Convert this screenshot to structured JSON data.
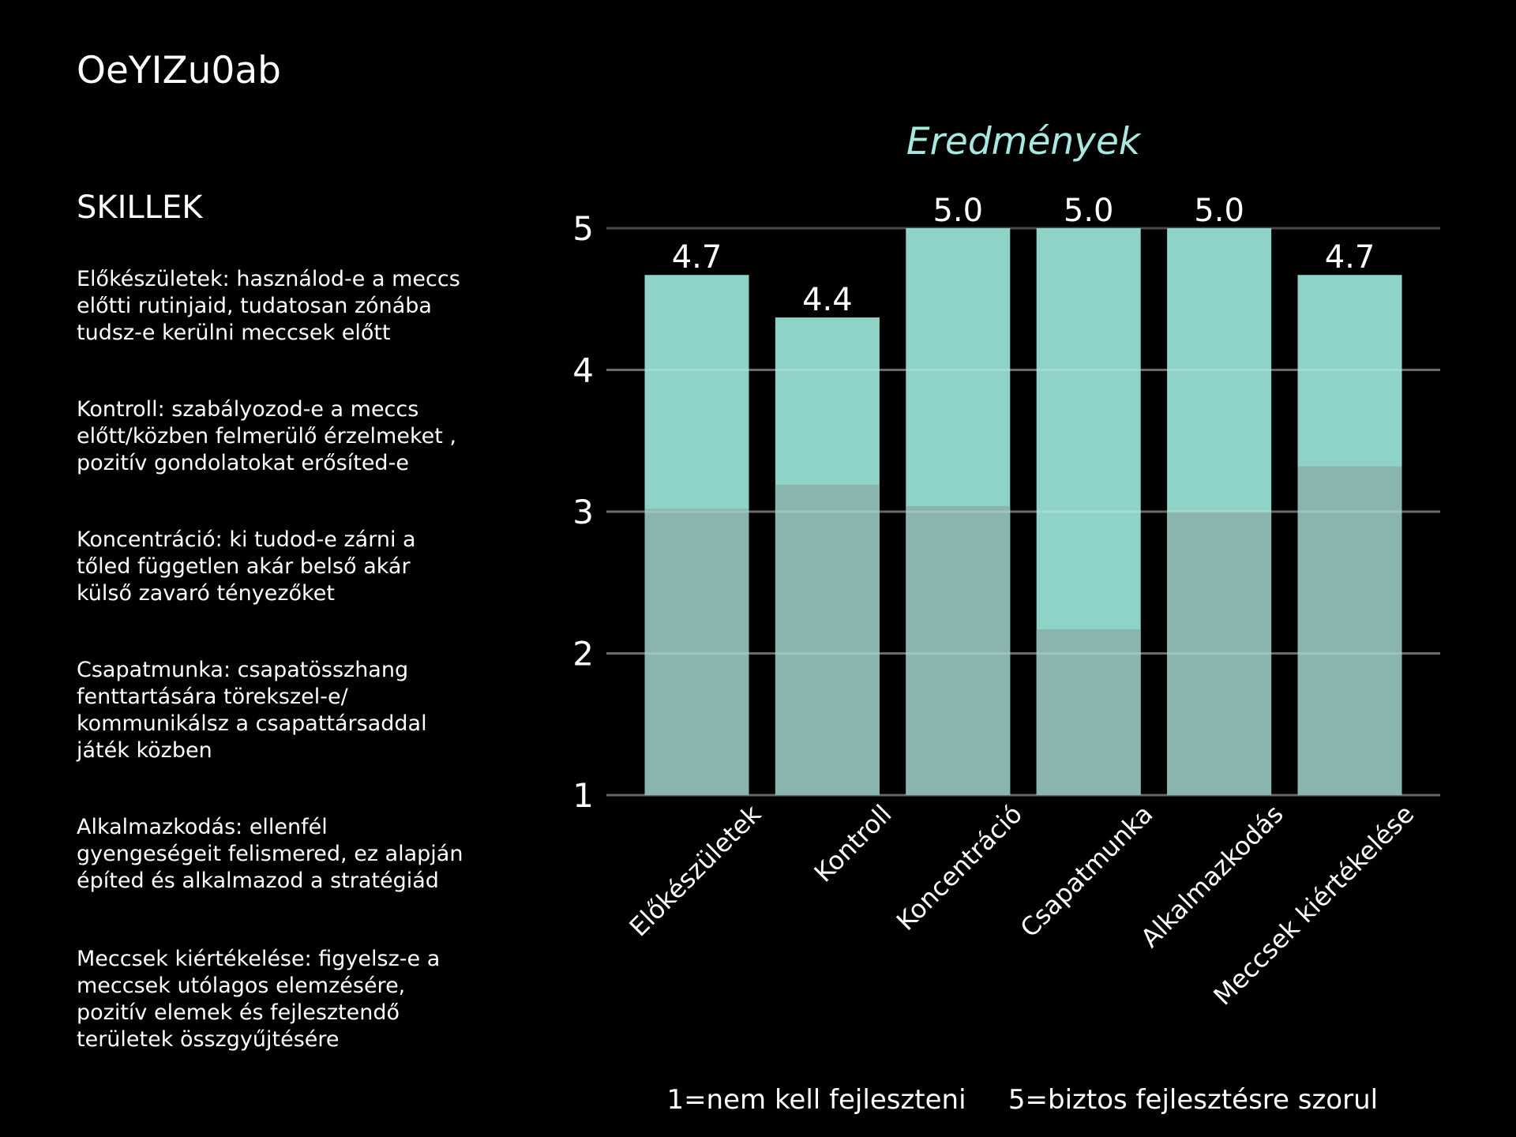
{
  "code": "OeYIZu0ab",
  "skills_heading": "SKILLEK",
  "descriptions": [
    "Előkészületek: használod-e a  meccs\nelőtti rutinjaid, tudatosan zónába\ntudsz-e kerülni  meccsek előtt",
    "Kontroll: szabályozod-e a meccs\nelőtt/közben felmerülő érzelmeket ,\npozitív gondolatokat erősíted-e",
    "Koncentráció: ki tudod-e zárni a\ntőled független akár belső akár\nkülső zavaró tényezőket",
    "Csapatmunka: csapatösszhang\nfenttartására törekszel-e/\nkommunikálsz a csapattársaddal\njáték közben",
    "Alkalmazkodás: ellenfél\ngyengeségeit felismered, ez alapján\népíted és alkalmazod a stratégiád",
    "Meccsek kiértékelése: figyelsz-e a\nmeccsek utólagos elemzésére,\npozitív elemek és fejlesztendő\nterületek összgyűjtésére"
  ],
  "colors": {
    "background": "#000000",
    "bar_top": "#8fd3c8",
    "bar_bottom": "#8ab5ae",
    "title": "#a8e8e0",
    "grid": "#4a4a4a",
    "text": "#ffffff"
  },
  "chart_data": {
    "type": "bar",
    "title": "Eredmények",
    "categories": [
      "Előkészületek",
      "Kontroll",
      "Koncentráció",
      "Csapatmunka",
      "Alkalmazkodás",
      "Meccsek kiértékelése"
    ],
    "series": [
      {
        "values": [
          4.67,
          4.37,
          5.0,
          5.0,
          5.0,
          4.67
        ]
      },
      {
        "values": [
          3.02,
          3.19,
          3.04,
          2.17,
          3.0,
          3.32
        ]
      }
    ],
    "data_labels": [
      "4.7",
      "4.4",
      "5.0",
      "5.0",
      "5.0",
      "4.7"
    ],
    "yticks": [
      1,
      2,
      3,
      4,
      5
    ],
    "ylim": [
      1,
      5
    ],
    "grid": true,
    "footnote_left": "1=nem kell fejleszteni",
    "footnote_right": "5=biztos fejlesztésre szorul"
  }
}
